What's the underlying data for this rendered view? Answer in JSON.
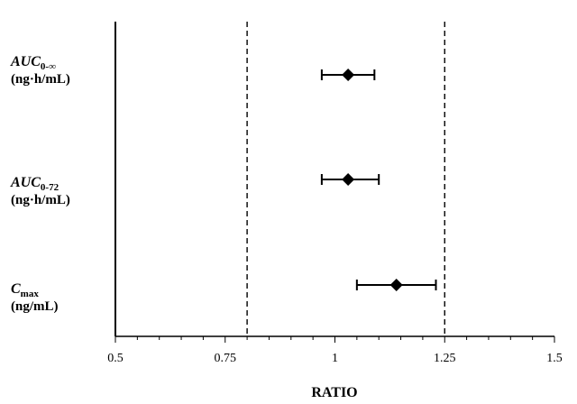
{
  "chart_data": {
    "type": "scatter",
    "title": "",
    "xlabel": "RATIO",
    "ylabel": "",
    "xlim": [
      0.5,
      1.5
    ],
    "xticks": [
      "0.5",
      "0.75",
      "1",
      "1.25",
      "1.5"
    ],
    "xtick_values": [
      0.5,
      0.75,
      1,
      1.25,
      1.5
    ],
    "reference_lines": [
      0.8,
      1.25
    ],
    "categories": [
      {
        "label_main": "AUC",
        "label_sub": "0-∞",
        "label_unit": "(ng·h/mL)",
        "point": 1.03,
        "ci_low": 0.97,
        "ci_high": 1.09
      },
      {
        "label_main": "AUC",
        "label_sub": "0-72",
        "label_unit": "(ng·h/mL)",
        "point": 1.03,
        "ci_low": 0.97,
        "ci_high": 1.1
      },
      {
        "label_main": "C",
        "label_sub": "max",
        "label_unit": "(ng/mL)",
        "point": 1.14,
        "ci_low": 1.05,
        "ci_high": 1.23
      }
    ],
    "grid": false,
    "legend": "none"
  }
}
